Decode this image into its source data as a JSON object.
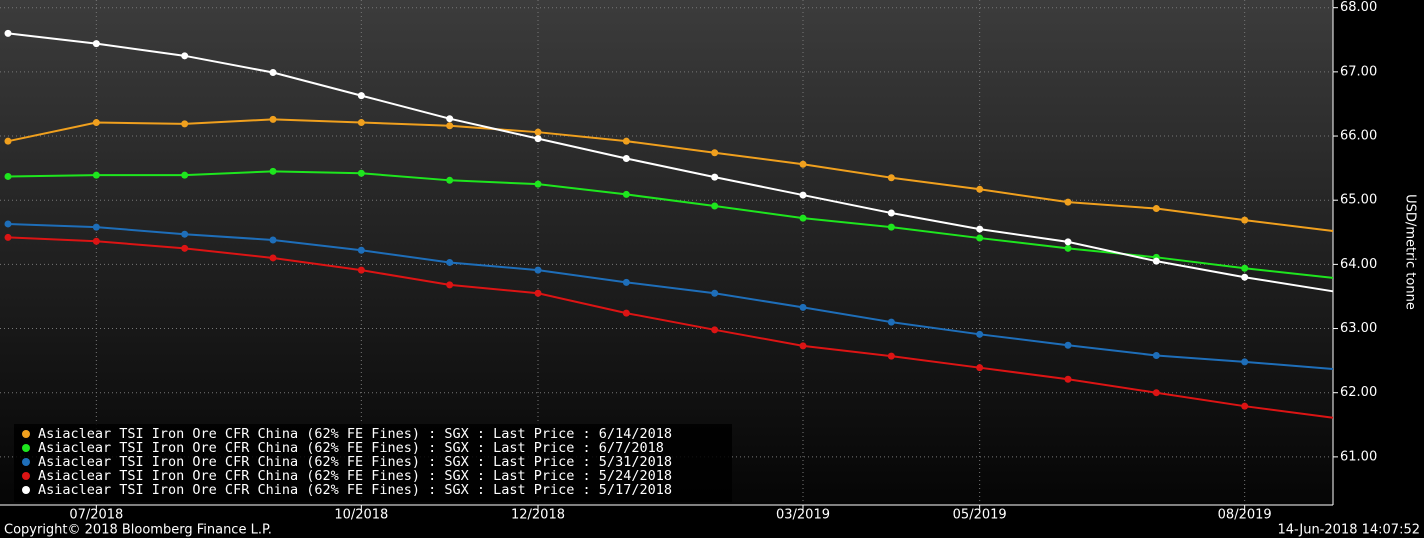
{
  "chart_data": {
    "type": "line",
    "y_label": "USD/metric tonne",
    "copyright": "Copyright© 2018 Bloomberg Finance L.P.",
    "timestamp": "14-Jun-2018 14:07:52",
    "categories": [
      null,
      "07/2018",
      null,
      null,
      "10/2018",
      null,
      "12/2018",
      null,
      null,
      "03/2019",
      null,
      "05/2019",
      null,
      null,
      "08/2019",
      null
    ],
    "ylim": [
      60.25,
      68.12
    ],
    "yticks": [
      {
        "value": 61,
        "label": "61.00"
      },
      {
        "value": 62,
        "label": "62.00"
      },
      {
        "value": 63,
        "label": "63.00"
      },
      {
        "value": 64,
        "label": "64.00"
      },
      {
        "value": 65,
        "label": "65.00"
      },
      {
        "value": 66,
        "label": "66.00"
      },
      {
        "value": 67,
        "label": "67.00"
      },
      {
        "value": 68,
        "label": "68.00"
      }
    ],
    "grid": true,
    "legend": "lower left",
    "series": [
      {
        "name": "Asiaclear TSI Iron Ore CFR China (62% FE Fines) : SGX : Last Price : 6/14/2018",
        "color": "#f0a01e",
        "values": [
          65.92,
          66.21,
          66.19,
          66.26,
          66.21,
          66.16,
          66.06,
          65.92,
          65.74,
          65.56,
          65.35,
          65.17,
          64.97,
          64.87,
          64.69,
          64.52
        ]
      },
      {
        "name": "Asiaclear TSI Iron Ore CFR China (62% FE Fines) : SGX : Last Price : 6/7/2018",
        "color": "#1ee61e",
        "values": [
          65.37,
          65.39,
          65.39,
          65.45,
          65.42,
          65.31,
          65.25,
          65.09,
          64.91,
          64.72,
          64.58,
          64.41,
          64.25,
          64.11,
          63.94,
          63.79
        ]
      },
      {
        "name": "Asiaclear TSI Iron Ore CFR China (62% FE Fines) : SGX : Last Price : 5/31/2018",
        "color": "#1e6eb9",
        "values": [
          64.63,
          64.58,
          64.47,
          64.38,
          64.22,
          64.03,
          63.91,
          63.72,
          63.55,
          63.33,
          63.1,
          62.91,
          62.74,
          62.58,
          62.48,
          62.37
        ]
      },
      {
        "name": "Asiaclear TSI Iron Ore CFR China (62% FE Fines) : SGX : Last Price : 5/24/2018",
        "color": "#dc1414",
        "values": [
          64.42,
          64.36,
          64.25,
          64.1,
          63.91,
          63.68,
          63.55,
          63.24,
          62.98,
          62.73,
          62.57,
          62.39,
          62.21,
          62.0,
          61.79,
          61.61
        ]
      },
      {
        "name": "Asiaclear TSI Iron Ore CFR China (62% FE Fines) : SGX : Last Price : 5/17/2018",
        "color": "#ffffff",
        "values": [
          67.6,
          67.44,
          67.25,
          66.99,
          66.63,
          66.27,
          65.96,
          65.65,
          65.36,
          65.08,
          64.8,
          64.55,
          64.35,
          64.05,
          63.8,
          63.58
        ]
      }
    ]
  }
}
